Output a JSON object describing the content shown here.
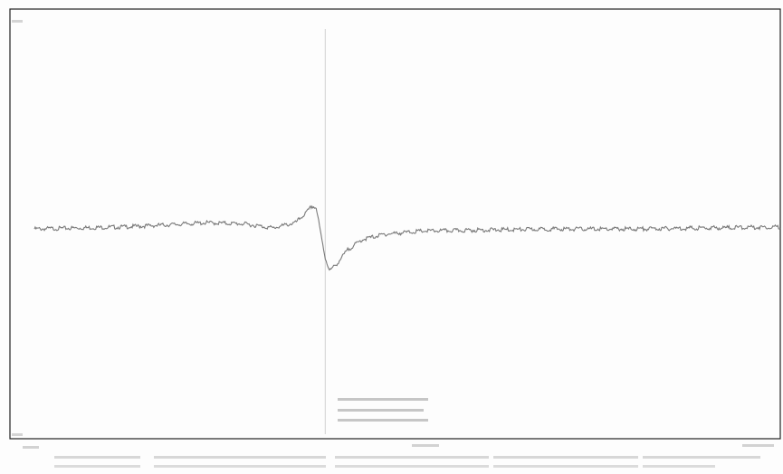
{
  "chart_data": {
    "type": "line",
    "title": "",
    "xlabel": "",
    "ylabel": "",
    "axes_style": "boxed",
    "grid": false,
    "legend": "none",
    "trace_color": "#7a7a7a",
    "frame_color": "#222222",
    "marker_color": "#d8d8d8",
    "x_range": [
      0,
      1000
    ],
    "y_range": [
      -1,
      1
    ],
    "cursor_x": 390,
    "baseline": 0.0,
    "series": [
      {
        "x": [
          0,
          60,
          120,
          180,
          230,
          280,
          320,
          350,
          365,
          372,
          378,
          384,
          390,
          396,
          405,
          420,
          440,
          470,
          520,
          600,
          700,
          800,
          900,
          1000
        ],
        "y": [
          0.0,
          0.01,
          0.02,
          0.04,
          0.06,
          0.05,
          0.01,
          0.06,
          0.16,
          0.22,
          0.2,
          -0.05,
          -0.28,
          -0.4,
          -0.34,
          -0.2,
          -0.1,
          -0.05,
          -0.02,
          -0.01,
          0.0,
          0.0,
          0.01,
          0.02
        ]
      }
    ]
  }
}
